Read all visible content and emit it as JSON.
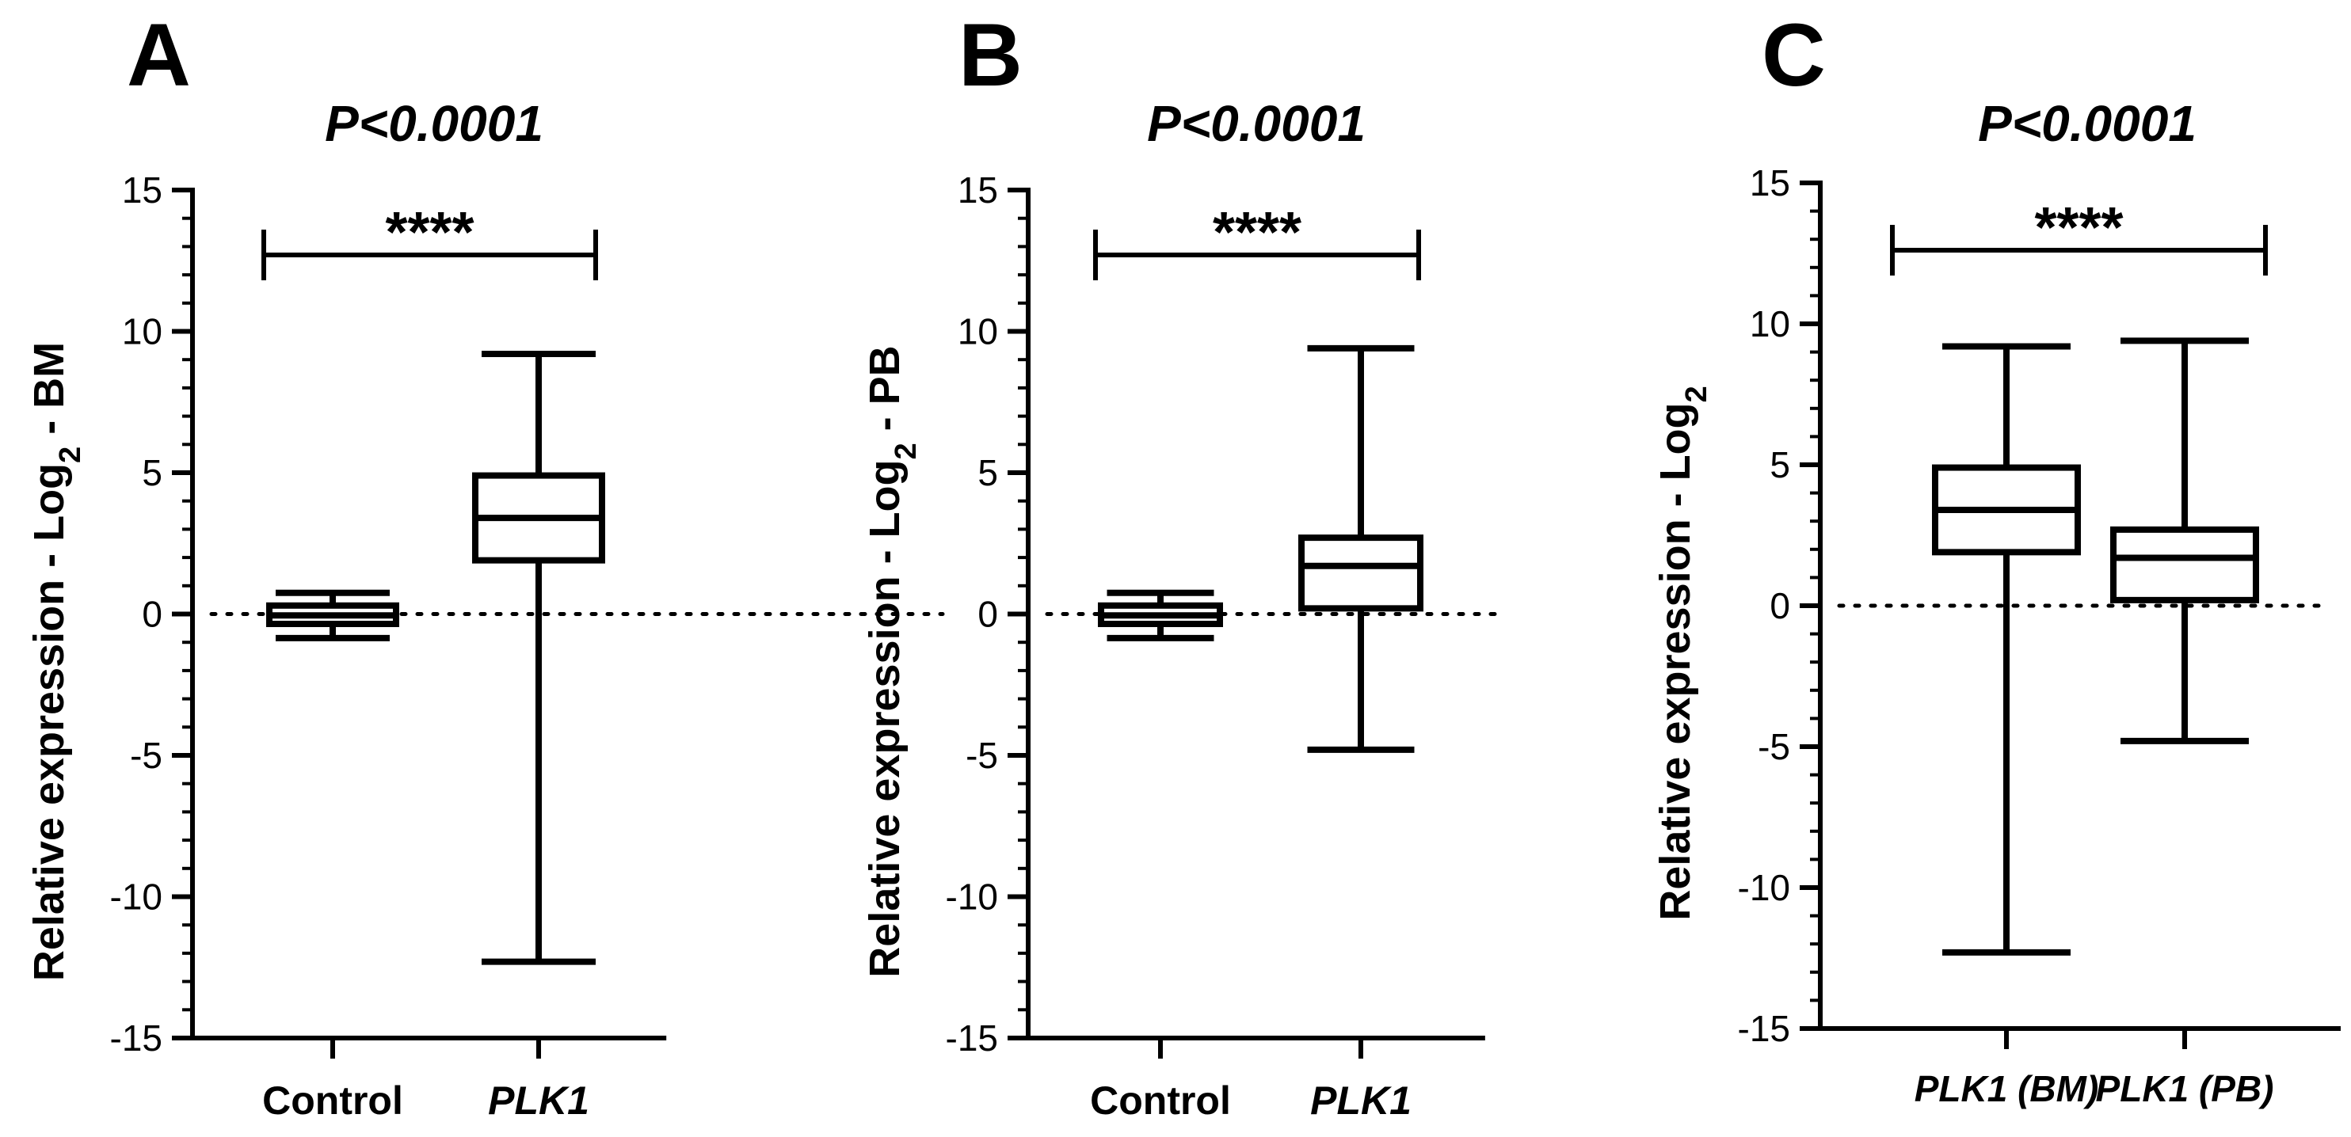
{
  "chart_data": [
    {
      "type": "box",
      "panel": "A",
      "title": "P<0.0001",
      "significance": "****",
      "ylabel": "Relative expression - Log",
      "ylabel_sub": "2",
      "ylabel_suffix": " - BM",
      "ylim": [
        -15,
        15
      ],
      "yticks": [
        15,
        10,
        5,
        0,
        -5,
        -10,
        -15
      ],
      "ytick_labels": [
        "15",
        "10",
        "5",
        "0",
        "-5",
        "-10",
        "-15"
      ],
      "reference_line": 0,
      "categories": [
        "Control",
        "PLK1"
      ],
      "category_italic": [
        false,
        true
      ],
      "boxes": [
        {
          "min": -0.85,
          "q1": -0.35,
          "median": -0.05,
          "q3": 0.3,
          "max": 0.75
        },
        {
          "min": -12.3,
          "q1": 1.9,
          "median": 3.4,
          "q3": 4.9,
          "max": 9.2
        }
      ]
    },
    {
      "type": "box",
      "panel": "B",
      "title": "P<0.0001",
      "significance": "****",
      "ylabel": "Relative expression - Log",
      "ylabel_sub": "2",
      "ylabel_suffix": " - PB",
      "ylim": [
        -15,
        15
      ],
      "yticks": [
        15,
        10,
        5,
        0,
        -5,
        -10,
        -15
      ],
      "ytick_labels": [
        "15",
        "10",
        "5",
        "0",
        "-5",
        "-10",
        "-15"
      ],
      "reference_line": 0,
      "categories": [
        "Control",
        "PLK1"
      ],
      "category_italic": [
        false,
        true
      ],
      "boxes": [
        {
          "min": -0.85,
          "q1": -0.35,
          "median": -0.05,
          "q3": 0.3,
          "max": 0.75
        },
        {
          "min": -4.8,
          "q1": 0.2,
          "median": 1.7,
          "q3": 2.7,
          "max": 9.4
        }
      ]
    },
    {
      "type": "box",
      "panel": "C",
      "title": "P<0.0001",
      "significance": "****",
      "ylabel": "Relative expression - Log",
      "ylabel_sub": "2",
      "ylabel_suffix": "",
      "ylim": [
        -15,
        15
      ],
      "yticks": [
        15,
        10,
        5,
        0,
        -5,
        -10,
        -15
      ],
      "ytick_labels": [
        "15",
        "10",
        "5",
        "0",
        "-5",
        "-10",
        "-15"
      ],
      "reference_line": 0,
      "categories": [
        "PLK1 (BM)",
        "PLK1 (PB)"
      ],
      "category_italic": [
        true,
        true
      ],
      "boxes": [
        {
          "min": -12.3,
          "q1": 1.9,
          "median": 3.4,
          "q3": 4.9,
          "max": 9.2
        },
        {
          "min": -4.8,
          "q1": 0.2,
          "median": 1.7,
          "q3": 2.7,
          "max": 9.4
        }
      ]
    }
  ],
  "colors": {
    "ink": "#000000",
    "background": "#ffffff"
  }
}
